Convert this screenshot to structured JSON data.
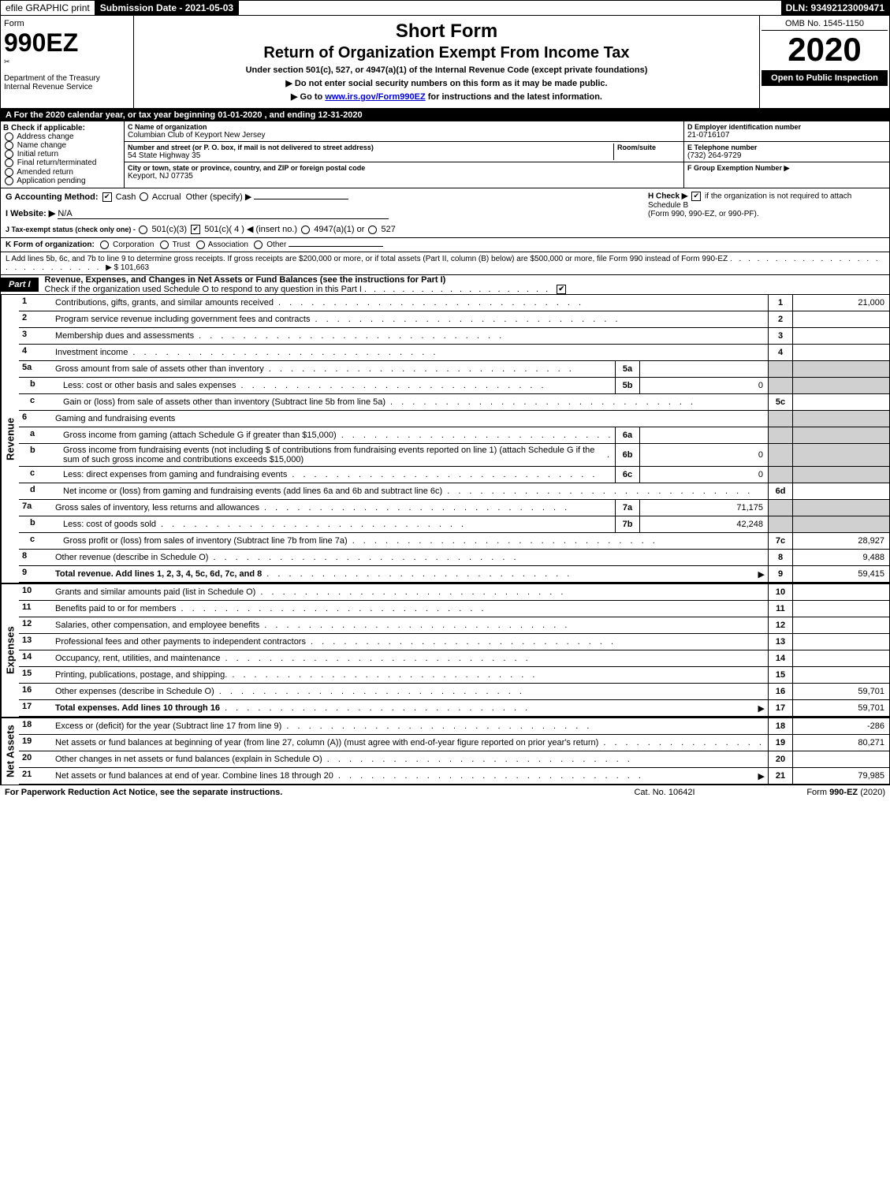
{
  "topbar": {
    "efile": "efile GRAPHIC print",
    "submission_label": "Submission Date - 2021-05-03",
    "dln": "DLN: 93492123009471"
  },
  "header": {
    "form_word": "Form",
    "form_num": "990EZ",
    "dept": "Department of the Treasury",
    "irs": "Internal Revenue Service",
    "short_form": "Short Form",
    "return_title": "Return of Organization Exempt From Income Tax",
    "under": "Under section 501(c), 527, or 4947(a)(1) of the Internal Revenue Code (except private foundations)",
    "noss": "▶ Do not enter social security numbers on this form as it may be made public.",
    "goto_pre": "▶ Go to ",
    "goto_link": "www.irs.gov/Form990EZ",
    "goto_post": " for instructions and the latest information.",
    "omb": "OMB No. 1545-1150",
    "year": "2020",
    "open": "Open to Public Inspection"
  },
  "rowA": "A For the 2020 calendar year, or tax year beginning 01-01-2020 , and ending 12-31-2020",
  "B": {
    "title": "B Check if applicable:",
    "opts": [
      "Address change",
      "Name change",
      "Initial return",
      "Final return/terminated",
      "Amended return",
      "Application pending"
    ]
  },
  "C": {
    "name_label": "C Name of organization",
    "name": "Columbian Club of Keyport New Jersey",
    "street_label": "Number and street (or P. O. box, if mail is not delivered to street address)",
    "room_label": "Room/suite",
    "street": "54 State Highway 35",
    "city_label": "City or town, state or province, country, and ZIP or foreign postal code",
    "city": "Keyport, NJ  07735"
  },
  "D": {
    "label": "D Employer identification number",
    "val": "21-0716107"
  },
  "E": {
    "label": "E Telephone number",
    "val": "(732) 264-9729"
  },
  "F": {
    "label": "F Group Exemption Number  ▶"
  },
  "G": {
    "label": "G Accounting Method:",
    "cash": "Cash",
    "accrual": "Accrual",
    "other": "Other (specify) ▶"
  },
  "H": {
    "label": "H  Check ▶ ",
    "text": " if the organization is not required to attach Schedule B",
    "sub": "(Form 990, 990-EZ, or 990-PF)."
  },
  "I": {
    "label": "I Website: ▶",
    "val": "N/A"
  },
  "J": {
    "label": "J Tax-exempt status (check only one) - ",
    "a": "501(c)(3)",
    "b": "501(c)( 4 ) ◀ (insert no.)",
    "c": "4947(a)(1) or",
    "d": "527"
  },
  "K": {
    "label": "K Form of organization:",
    "opts": [
      "Corporation",
      "Trust",
      "Association",
      "Other"
    ]
  },
  "L": {
    "text": "L Add lines 5b, 6c, and 7b to line 9 to determine gross receipts. If gross receipts are $200,000 or more, or if total assets (Part II, column (B) below) are $500,000 or more, file Form 990 instead of Form 990-EZ",
    "amount": "▶ $ 101,663"
  },
  "part1": {
    "tag": "Part I",
    "title": "Revenue, Expenses, and Changes in Net Assets or Fund Balances (see the instructions for Part I)",
    "sub": "Check if the organization used Schedule O to respond to any question in this Part I"
  },
  "sides": {
    "revenue": "Revenue",
    "expenses": "Expenses",
    "netassets": "Net Assets"
  },
  "lines": {
    "l1": {
      "n": "1",
      "d": "Contributions, gifts, grants, and similar amounts received",
      "en": "1",
      "ev": "21,000"
    },
    "l2": {
      "n": "2",
      "d": "Program service revenue including government fees and contracts",
      "en": "2",
      "ev": ""
    },
    "l3": {
      "n": "3",
      "d": "Membership dues and assessments",
      "en": "3",
      "ev": ""
    },
    "l4": {
      "n": "4",
      "d": "Investment income",
      "en": "4",
      "ev": ""
    },
    "l5a": {
      "n": "5a",
      "d": "Gross amount from sale of assets other than inventory",
      "mn": "5a",
      "mv": ""
    },
    "l5b": {
      "n": "b",
      "d": "Less: cost or other basis and sales expenses",
      "mn": "5b",
      "mv": "0"
    },
    "l5c": {
      "n": "c",
      "d": "Gain or (loss) from sale of assets other than inventory (Subtract line 5b from line 5a)",
      "en": "5c",
      "ev": ""
    },
    "l6": {
      "n": "6",
      "d": "Gaming and fundraising events"
    },
    "l6a": {
      "n": "a",
      "d": "Gross income from gaming (attach Schedule G if greater than $15,000)",
      "mn": "6a",
      "mv": ""
    },
    "l6b": {
      "n": "b",
      "d": "Gross income from fundraising events (not including $                  of contributions from fundraising events reported on line 1) (attach Schedule G if the sum of such gross income and contributions exceeds $15,000)",
      "mn": "6b",
      "mv": "0"
    },
    "l6c": {
      "n": "c",
      "d": "Less: direct expenses from gaming and fundraising events",
      "mn": "6c",
      "mv": "0"
    },
    "l6d": {
      "n": "d",
      "d": "Net income or (loss) from gaming and fundraising events (add lines 6a and 6b and subtract line 6c)",
      "en": "6d",
      "ev": ""
    },
    "l7a": {
      "n": "7a",
      "d": "Gross sales of inventory, less returns and allowances",
      "mn": "7a",
      "mv": "71,175"
    },
    "l7b": {
      "n": "b",
      "d": "Less: cost of goods sold",
      "mn": "7b",
      "mv": "42,248"
    },
    "l7c": {
      "n": "c",
      "d": "Gross profit or (loss) from sales of inventory (Subtract line 7b from line 7a)",
      "en": "7c",
      "ev": "28,927"
    },
    "l8": {
      "n": "8",
      "d": "Other revenue (describe in Schedule O)",
      "en": "8",
      "ev": "9,488"
    },
    "l9": {
      "n": "9",
      "d": "Total revenue. Add lines 1, 2, 3, 4, 5c, 6d, 7c, and 8",
      "en": "9",
      "ev": "59,415",
      "bold": true,
      "arrow": true
    },
    "l10": {
      "n": "10",
      "d": "Grants and similar amounts paid (list in Schedule O)",
      "en": "10",
      "ev": ""
    },
    "l11": {
      "n": "11",
      "d": "Benefits paid to or for members",
      "en": "11",
      "ev": ""
    },
    "l12": {
      "n": "12",
      "d": "Salaries, other compensation, and employee benefits",
      "en": "12",
      "ev": ""
    },
    "l13": {
      "n": "13",
      "d": "Professional fees and other payments to independent contractors",
      "en": "13",
      "ev": ""
    },
    "l14": {
      "n": "14",
      "d": "Occupancy, rent, utilities, and maintenance",
      "en": "14",
      "ev": ""
    },
    "l15": {
      "n": "15",
      "d": "Printing, publications, postage, and shipping.",
      "en": "15",
      "ev": ""
    },
    "l16": {
      "n": "16",
      "d": "Other expenses (describe in Schedule O)",
      "en": "16",
      "ev": "59,701"
    },
    "l17": {
      "n": "17",
      "d": "Total expenses. Add lines 10 through 16",
      "en": "17",
      "ev": "59,701",
      "bold": true,
      "arrow": true
    },
    "l18": {
      "n": "18",
      "d": "Excess or (deficit) for the year (Subtract line 17 from line 9)",
      "en": "18",
      "ev": "-286"
    },
    "l19": {
      "n": "19",
      "d": "Net assets or fund balances at beginning of year (from line 27, column (A)) (must agree with end-of-year figure reported on prior year's return)",
      "en": "19",
      "ev": "80,271"
    },
    "l20": {
      "n": "20",
      "d": "Other changes in net assets or fund balances (explain in Schedule O)",
      "en": "20",
      "ev": ""
    },
    "l21": {
      "n": "21",
      "d": "Net assets or fund balances at end of year. Combine lines 18 through 20",
      "en": "21",
      "ev": "79,985",
      "arrow": true
    }
  },
  "footer": {
    "left": "For Paperwork Reduction Act Notice, see the separate instructions.",
    "mid": "Cat. No. 10642I",
    "right_pre": "Form ",
    "right_bold": "990-EZ",
    "right_post": " (2020)"
  },
  "style": {
    "colors": {
      "black": "#000000",
      "white": "#ffffff",
      "shade": "#d0d0d0",
      "link": "#0000cc"
    },
    "fontsizes": {
      "base": 11,
      "form_num": 32,
      "year": 42,
      "short_form": 24,
      "return_title": 20
    }
  }
}
